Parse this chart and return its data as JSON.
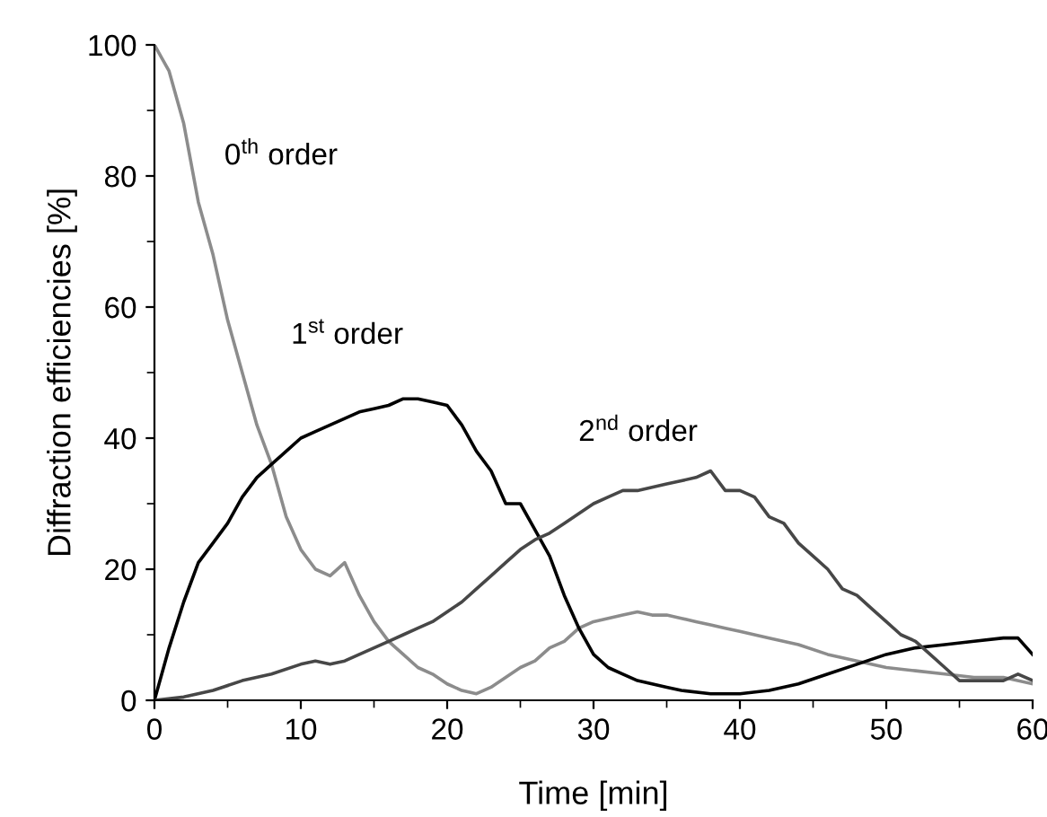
{
  "chart_data": {
    "type": "line",
    "xlabel": "Time [min]",
    "ylabel": "Diffraction efficiencies [%]",
    "xlim": [
      0,
      60
    ],
    "ylim": [
      0,
      100
    ],
    "xticks": [
      0,
      10,
      20,
      30,
      40,
      50,
      60
    ],
    "yticks": [
      0,
      20,
      40,
      60,
      80,
      100
    ],
    "grid": false,
    "legend": false,
    "marker": "none",
    "line_style": "solid",
    "series": [
      {
        "name": "0$^{th}$ order",
        "color": "#8c8c8c",
        "x": [
          0,
          0.5,
          1,
          2,
          3,
          4,
          5,
          6,
          7,
          8,
          9,
          10,
          11,
          12,
          13,
          14,
          15,
          16,
          17,
          18,
          19,
          20,
          21,
          22,
          23,
          24,
          25,
          26,
          27,
          28,
          29,
          30,
          31,
          32,
          33,
          34,
          35,
          36,
          37,
          38,
          39,
          40,
          42,
          44,
          46,
          48,
          50,
          52,
          54,
          56,
          58,
          60
        ],
        "values": [
          100,
          98,
          96,
          88,
          76,
          68,
          58,
          50,
          42,
          36,
          28,
          23,
          20,
          19,
          21,
          16,
          12,
          9,
          7,
          5,
          4,
          2.5,
          1.5,
          1,
          2,
          3.5,
          5,
          6,
          8,
          9,
          11,
          12,
          12.5,
          13,
          13.5,
          13,
          13,
          12.5,
          12,
          11.5,
          11,
          10.5,
          9.5,
          8.5,
          7,
          6,
          5,
          4.5,
          4,
          3.5,
          3.5,
          2.5
        ]
      },
      {
        "name": "1$^{st}$ order",
        "color": "#000000",
        "x": [
          0,
          1,
          2,
          3,
          4,
          5,
          6,
          7,
          8,
          9,
          10,
          11,
          12,
          13,
          14,
          15,
          16,
          17,
          18,
          19,
          20,
          21,
          22,
          23,
          24,
          25,
          26,
          27,
          28,
          29,
          30,
          31,
          32,
          33,
          34,
          35,
          36,
          38,
          40,
          42,
          44,
          46,
          48,
          50,
          52,
          54,
          56,
          58,
          59,
          60
        ],
        "values": [
          0,
          8,
          15,
          21,
          24,
          27,
          31,
          34,
          36,
          38,
          40,
          41,
          42,
          43,
          44,
          44.5,
          45,
          46,
          46,
          45.5,
          45,
          42,
          38,
          35,
          30,
          30,
          26,
          22,
          16,
          11,
          7,
          5,
          4,
          3,
          2.5,
          2,
          1.5,
          1,
          1,
          1.5,
          2.5,
          4,
          5.5,
          7,
          8,
          8.5,
          9,
          9.5,
          9.5,
          7
        ]
      },
      {
        "name": "2$^{nd}$ order",
        "color": "#474747",
        "x": [
          0,
          2,
          4,
          6,
          8,
          10,
          11,
          12,
          13,
          14,
          15,
          16,
          17,
          18,
          19,
          20,
          21,
          22,
          23,
          24,
          25,
          26,
          27,
          28,
          29,
          30,
          31,
          32,
          33,
          34,
          35,
          36,
          37,
          38,
          39,
          40,
          41,
          42,
          43,
          44,
          45,
          46,
          47,
          48,
          49,
          50,
          51,
          52,
          53,
          54,
          55,
          56,
          57,
          58,
          59,
          60
        ],
        "values": [
          0,
          0.5,
          1.5,
          3,
          4,
          5.5,
          6,
          5.5,
          6,
          7,
          8,
          9,
          10,
          11,
          12,
          13.5,
          15,
          17,
          19,
          21,
          23,
          24.5,
          25.5,
          27,
          28.5,
          30,
          31,
          32,
          32,
          32.5,
          33,
          33.5,
          34,
          35,
          32,
          32,
          31,
          28,
          27,
          24,
          22,
          20,
          17,
          16,
          14,
          12,
          10,
          9,
          7,
          5,
          3,
          3,
          3,
          3,
          4,
          3
        ]
      }
    ]
  }
}
